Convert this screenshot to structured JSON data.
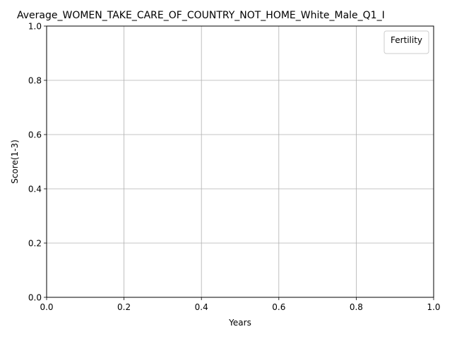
{
  "chart_data": {
    "type": "line",
    "title": "Average_WOMEN_TAKE_CARE_OF_COUNTRY_NOT_HOME_White_Male_Q1_I",
    "xlabel": "Years",
    "ylabel": "Score(1-3)",
    "xlim": [
      0.0,
      1.0
    ],
    "ylim": [
      0.0,
      1.0
    ],
    "x_ticks": [
      "0.0",
      "0.2",
      "0.4",
      "0.6",
      "0.8",
      "1.0"
    ],
    "y_ticks": [
      "0.0",
      "0.2",
      "0.4",
      "0.6",
      "0.8",
      "1.0"
    ],
    "grid": true,
    "legend": {
      "title": "Fertility",
      "placement": "top-right",
      "entries": []
    },
    "series": []
  },
  "colors": {
    "grid": "#b0b0b0",
    "axes": "#000000",
    "legend_border": "#cccccc"
  }
}
